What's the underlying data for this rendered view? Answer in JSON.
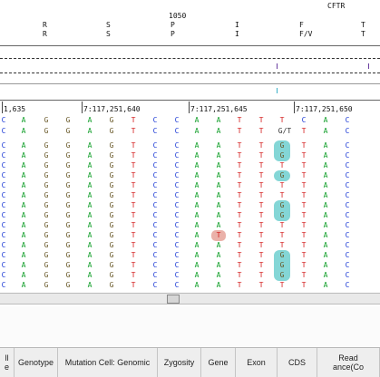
{
  "header": {
    "gene_label": "CFTR",
    "codon_number": "1050",
    "aa_columns": [
      {
        "top": "R",
        "bottom": "R"
      },
      {
        "top": "S",
        "bottom": "S"
      },
      {
        "top": "P",
        "bottom": "P"
      },
      {
        "top": "I",
        "bottom": "I"
      },
      {
        "top": "F",
        "bottom": "F/V"
      },
      {
        "top": "T",
        "bottom": "T"
      }
    ]
  },
  "ruler": {
    "positions": [
      "1,635",
      "7:117,251,640",
      "7:117,251,645",
      "7:117,251,650"
    ]
  },
  "reference": {
    "line1": [
      "C",
      "A",
      "G",
      "G",
      "A",
      "G",
      "T",
      "C",
      "C",
      "A",
      "A",
      "T",
      "T",
      "T",
      "C",
      "A",
      "C"
    ],
    "line2": [
      "C",
      "A",
      "G",
      "G",
      "A",
      "G",
      "T",
      "C",
      "C",
      "A",
      "A",
      "T",
      "T",
      "G/T",
      "T",
      "A",
      "C"
    ]
  },
  "reads": {
    "row_patterns": [
      [
        "C",
        "A",
        "G",
        "G",
        "A",
        "G",
        "T",
        "C",
        "C",
        "A",
        "A",
        "T",
        "T",
        "G",
        "T",
        "A",
        "C"
      ],
      [
        "C",
        "A",
        "G",
        "G",
        "A",
        "G",
        "T",
        "C",
        "C",
        "A",
        "A",
        "T",
        "T",
        "G",
        "T",
        "A",
        "C"
      ],
      [
        "C",
        "A",
        "G",
        "G",
        "A",
        "G",
        "T",
        "C",
        "C",
        "A",
        "A",
        "T",
        "T",
        "T",
        "T",
        "A",
        "C"
      ],
      [
        "C",
        "A",
        "G",
        "G",
        "A",
        "G",
        "T",
        "C",
        "C",
        "A",
        "A",
        "T",
        "T",
        "G",
        "T",
        "A",
        "C"
      ],
      [
        "C",
        "A",
        "G",
        "G",
        "A",
        "G",
        "T",
        "C",
        "C",
        "A",
        "A",
        "T",
        "T",
        "T",
        "T",
        "A",
        "C"
      ],
      [
        "C",
        "A",
        "G",
        "G",
        "A",
        "G",
        "T",
        "C",
        "C",
        "A",
        "A",
        "T",
        "T",
        "T",
        "T",
        "A",
        "C"
      ],
      [
        "C",
        "A",
        "G",
        "G",
        "A",
        "G",
        "T",
        "C",
        "C",
        "A",
        "A",
        "T",
        "T",
        "G",
        "T",
        "A",
        "C"
      ],
      [
        "C",
        "A",
        "G",
        "G",
        "A",
        "G",
        "T",
        "C",
        "C",
        "A",
        "A",
        "T",
        "T",
        "G",
        "T",
        "A",
        "C"
      ],
      [
        "C",
        "A",
        "G",
        "G",
        "A",
        "G",
        "T",
        "C",
        "C",
        "A",
        "A",
        "T",
        "T",
        "T",
        "T",
        "A",
        "C"
      ],
      [
        "C",
        "A",
        "G",
        "G",
        "A",
        "G",
        "T",
        "C",
        "C",
        "A",
        "T",
        "T",
        "T",
        "T",
        "T",
        "A",
        "C"
      ],
      [
        "C",
        "A",
        "G",
        "G",
        "A",
        "G",
        "T",
        "C",
        "C",
        "A",
        "A",
        "T",
        "T",
        "T",
        "T",
        "A",
        "C"
      ],
      [
        "C",
        "A",
        "G",
        "G",
        "A",
        "G",
        "T",
        "C",
        "C",
        "A",
        "A",
        "T",
        "T",
        "G",
        "T",
        "A",
        "C"
      ],
      [
        "C",
        "A",
        "G",
        "G",
        "A",
        "G",
        "T",
        "C",
        "C",
        "A",
        "A",
        "T",
        "T",
        "G",
        "T",
        "A",
        "C"
      ],
      [
        "C",
        "A",
        "G",
        "G",
        "A",
        "G",
        "T",
        "C",
        "C",
        "A",
        "A",
        "T",
        "T",
        "G",
        "T",
        "A",
        "C"
      ],
      [
        "C",
        "A",
        "G",
        "G",
        "A",
        "G",
        "T",
        "C",
        "C",
        "A",
        "A",
        "T",
        "T",
        "T",
        "T",
        "A",
        "C"
      ]
    ],
    "variant_column_index": 13,
    "mismatch_row": 9,
    "mismatch_col": 10
  },
  "table_headers": [
    "ll\ne",
    "Genotype",
    "Mutation Cell: Genomic",
    "Zygosity",
    "Gene",
    "Exon",
    "CDS",
    "Read\nance(Co"
  ],
  "colors": {
    "A": "#14a02c",
    "C": "#1f3cd6",
    "G": "#6a5a2a",
    "T": "#d42020",
    "variant_highlight": "#6fcfcf",
    "mismatch_highlight": "#e8a8a0"
  }
}
